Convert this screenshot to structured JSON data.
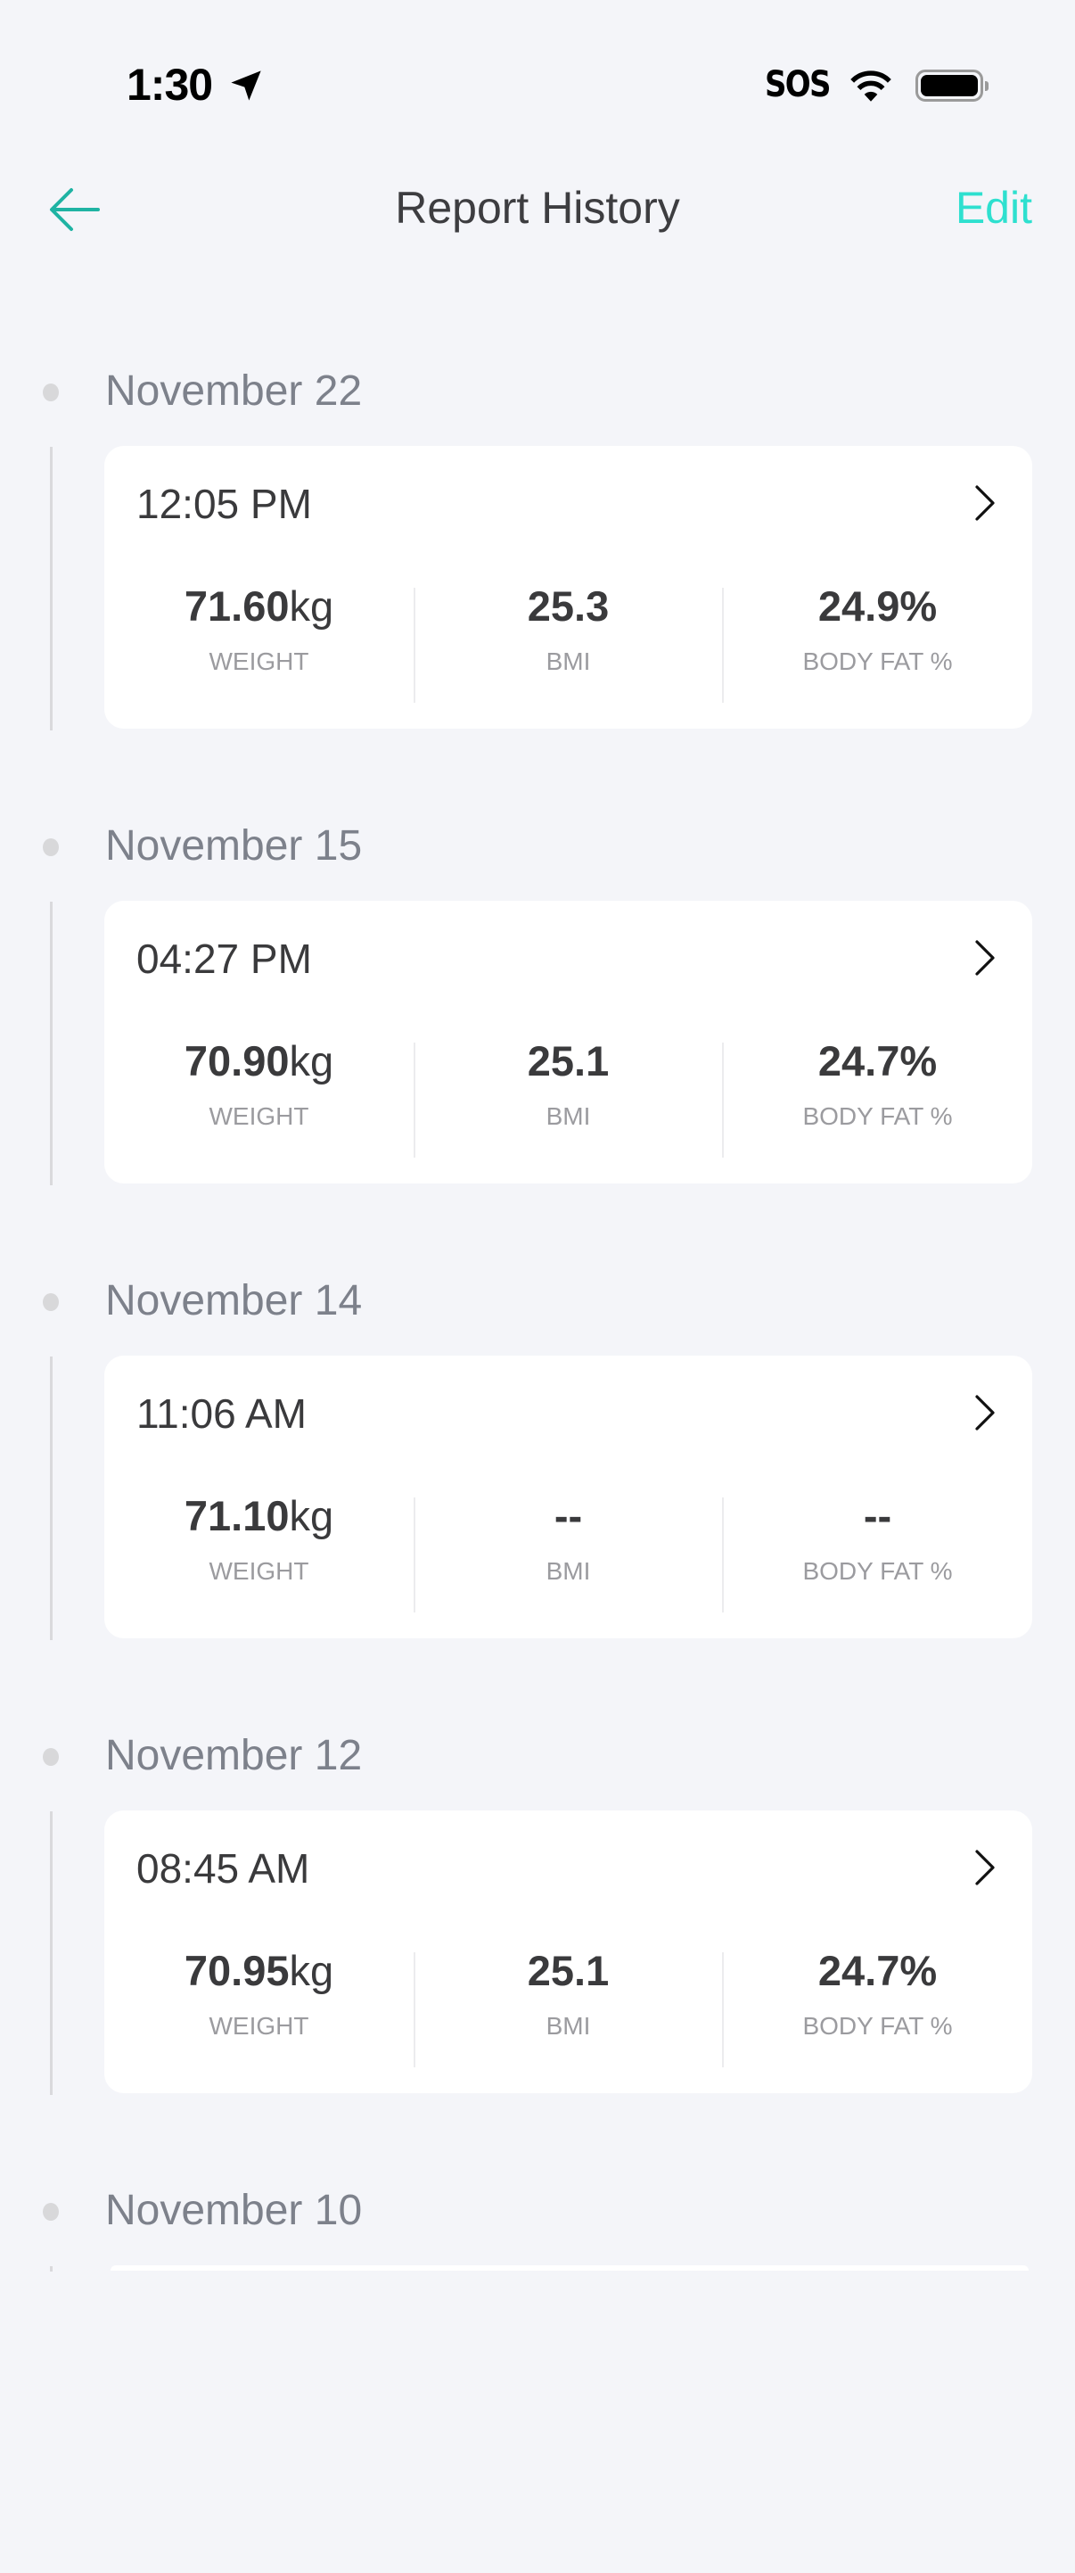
{
  "status_bar": {
    "time": "1:30",
    "sos": "SOS",
    "icons": [
      "location-arrow-icon",
      "wifi-icon",
      "battery-icon"
    ]
  },
  "header": {
    "title": "Report History",
    "edit_label": "Edit",
    "back_icon": "arrow-left-icon"
  },
  "colors": {
    "accent": "#2ee0cf",
    "back_arrow": "#1fb3a3",
    "background": "#f4f5f9"
  },
  "labels": {
    "weight": "WEIGHT",
    "bmi": "BMI",
    "body_fat": "BODY FAT %"
  },
  "reports": [
    {
      "date": "November 22",
      "time": "12:05 PM",
      "weight": "71.60",
      "weight_unit": "kg",
      "bmi": "25.3",
      "body_fat": "24.9%"
    },
    {
      "date": "November 15",
      "time": "04:27 PM",
      "weight": "70.90",
      "weight_unit": "kg",
      "bmi": "25.1",
      "body_fat": "24.7%"
    },
    {
      "date": "November 14",
      "time": "11:06 AM",
      "weight": "71.10",
      "weight_unit": "kg",
      "bmi": "--",
      "body_fat": "--"
    },
    {
      "date": "November 12",
      "time": "08:45 AM",
      "weight": "70.95",
      "weight_unit": "kg",
      "bmi": "25.1",
      "body_fat": "24.7%"
    },
    {
      "date": "November 10"
    }
  ]
}
